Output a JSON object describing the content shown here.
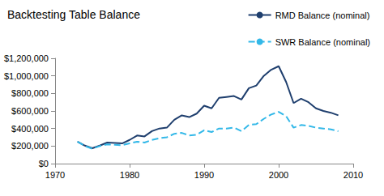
{
  "chart_data": {
    "type": "line",
    "title": "Backtesting Table Balance",
    "x": [
      1973,
      1974,
      1975,
      1976,
      1977,
      1978,
      1979,
      1980,
      1981,
      1982,
      1983,
      1984,
      1985,
      1986,
      1987,
      1988,
      1989,
      1990,
      1991,
      1992,
      1993,
      1994,
      1995,
      1996,
      1997,
      1998,
      1999,
      2000,
      2001,
      2002,
      2003,
      2004,
      2005,
      2006,
      2007,
      2008
    ],
    "series": [
      {
        "name": "RMD Balance (nominal)",
        "color": "#1f3f6e",
        "line_style": "solid",
        "values": [
          250000,
          205000,
          175000,
          205000,
          240000,
          235000,
          230000,
          270000,
          320000,
          310000,
          370000,
          400000,
          410000,
          500000,
          550000,
          530000,
          570000,
          660000,
          630000,
          750000,
          760000,
          770000,
          730000,
          860000,
          890000,
          1000000,
          1070000,
          1110000,
          930000,
          690000,
          740000,
          700000,
          630000,
          600000,
          580000,
          550000
        ]
      },
      {
        "name": "SWR Balance (nominal)",
        "color": "#33b8e8",
        "line_style": "dashed",
        "values": [
          250000,
          200000,
          170000,
          200000,
          220000,
          215000,
          210000,
          230000,
          250000,
          240000,
          270000,
          290000,
          300000,
          340000,
          350000,
          320000,
          330000,
          380000,
          360000,
          400000,
          400000,
          410000,
          370000,
          440000,
          450000,
          510000,
          560000,
          590000,
          540000,
          410000,
          440000,
          430000,
          410000,
          400000,
          390000,
          370000
        ]
      }
    ],
    "xlim": [
      1970,
      2010
    ],
    "xticks": [
      1970,
      1980,
      1990,
      2000,
      2010
    ],
    "ylim": [
      0,
      1200000
    ],
    "yticks": [
      {
        "value": 0,
        "label": "$0"
      },
      {
        "value": 200000,
        "label": "$200,000"
      },
      {
        "value": 400000,
        "label": "$400,000"
      },
      {
        "value": 600000,
        "label": "$600,000"
      },
      {
        "value": 800000,
        "label": "$800,000"
      },
      {
        "value": 1000000,
        "label": "$1,000,000"
      },
      {
        "value": 1200000,
        "label": "$1,200,000"
      }
    ],
    "grid": false,
    "legend": "top-right"
  }
}
